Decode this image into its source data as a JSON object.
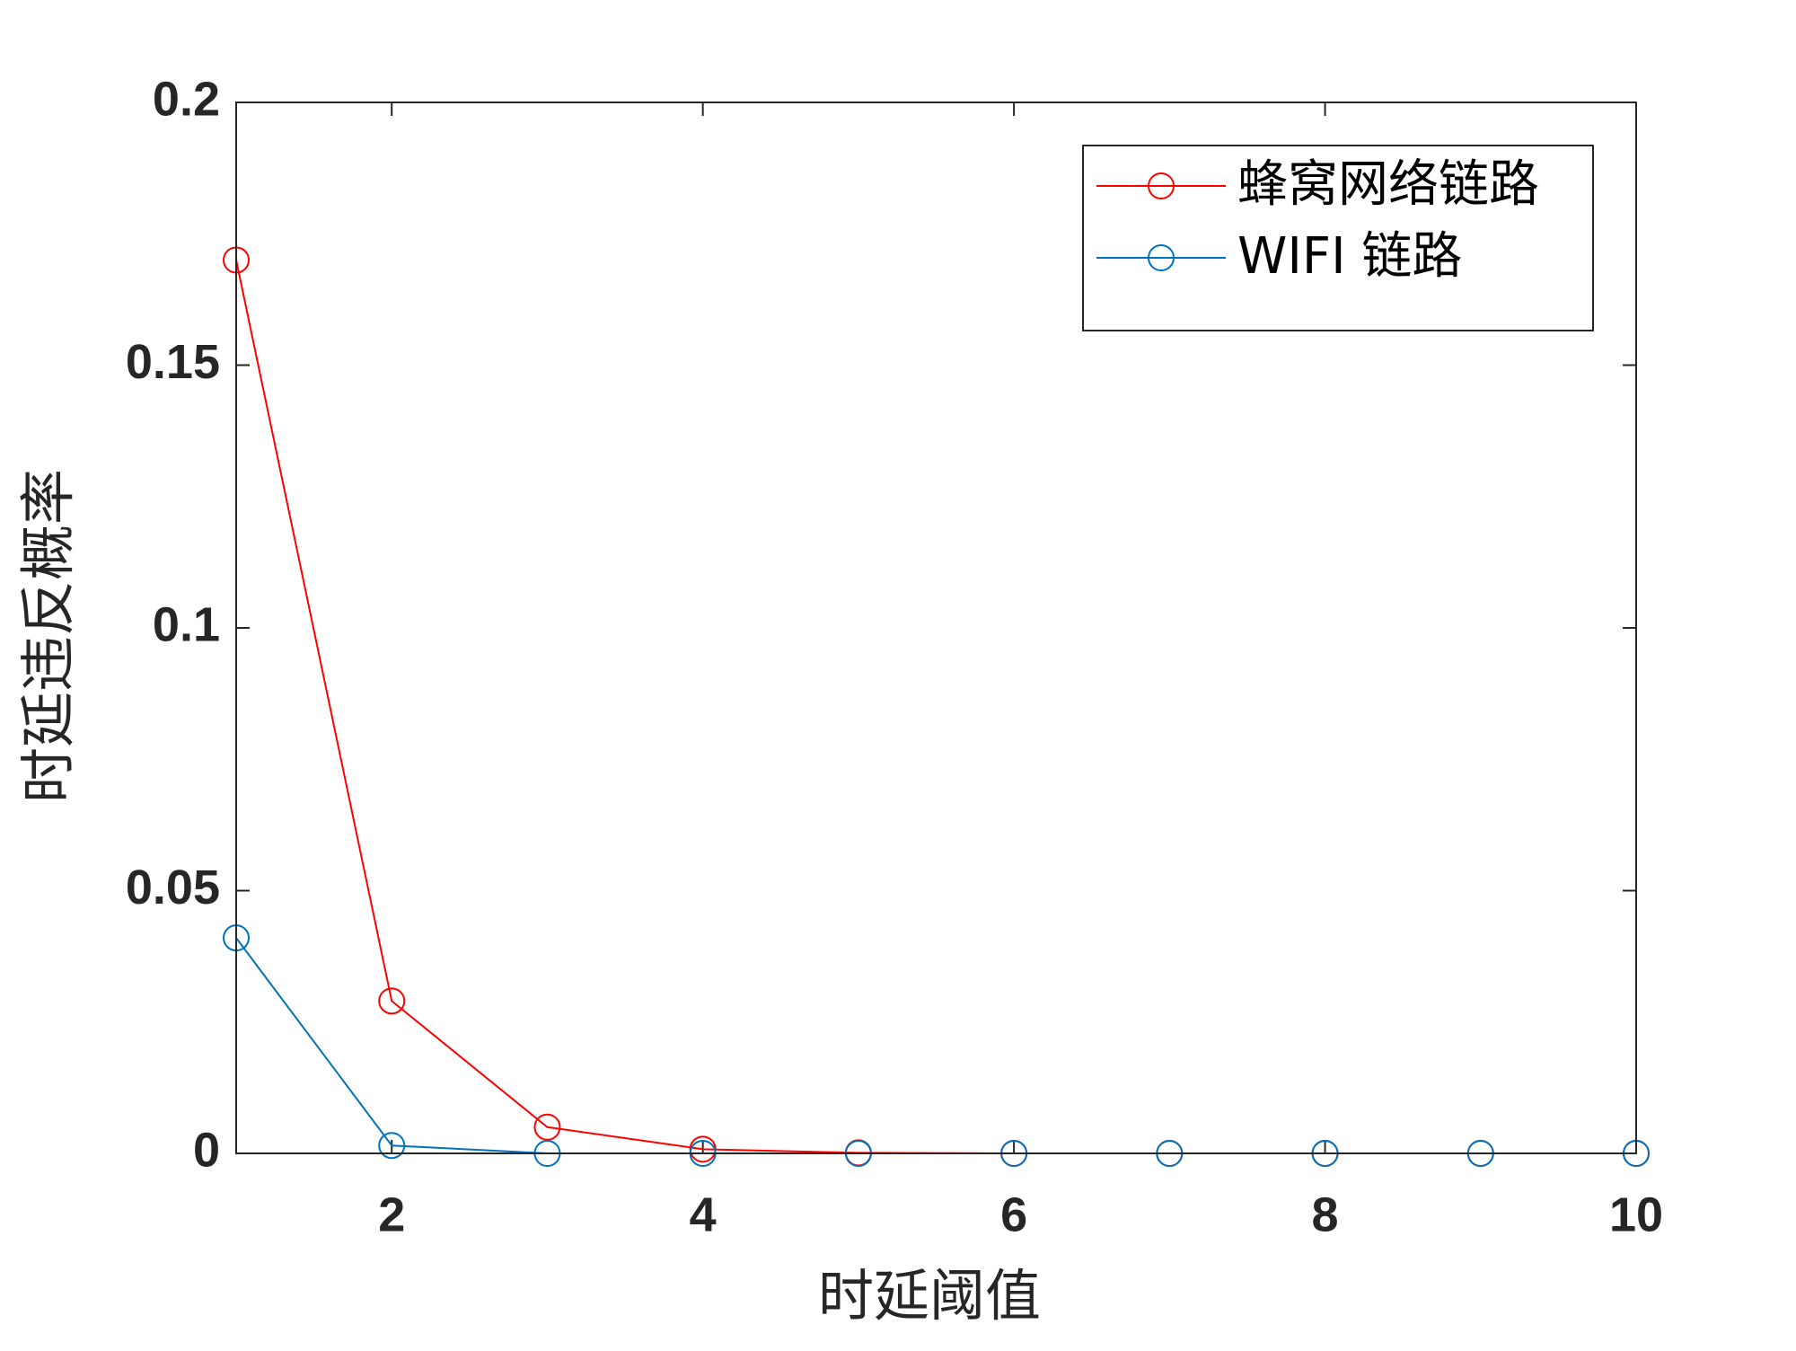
{
  "chart_data": {
    "type": "line",
    "x_label": "时延阈值",
    "y_label": "时延违反概率",
    "x": [
      1,
      2,
      3,
      4,
      5,
      6,
      7,
      8,
      9,
      10
    ],
    "series": [
      {
        "name": "蜂窝网络链路",
        "color": "#ff0000",
        "values": [
          0.17,
          0.029,
          0.005,
          0.0008,
          0.0001,
          0,
          0,
          0,
          0,
          0
        ]
      },
      {
        "name": "WIFI 链路",
        "color": "#0072bd",
        "values": [
          0.041,
          0.0015,
          0,
          0,
          0,
          0,
          0,
          0,
          0,
          0
        ]
      }
    ],
    "xlim": [
      1,
      10
    ],
    "xticks": [
      2,
      4,
      6,
      8,
      10
    ],
    "ylim": [
      0,
      0.2
    ],
    "yticks": [
      0,
      0.05,
      0.1,
      0.15,
      0.2
    ],
    "grid": false,
    "legend": "upper right"
  }
}
